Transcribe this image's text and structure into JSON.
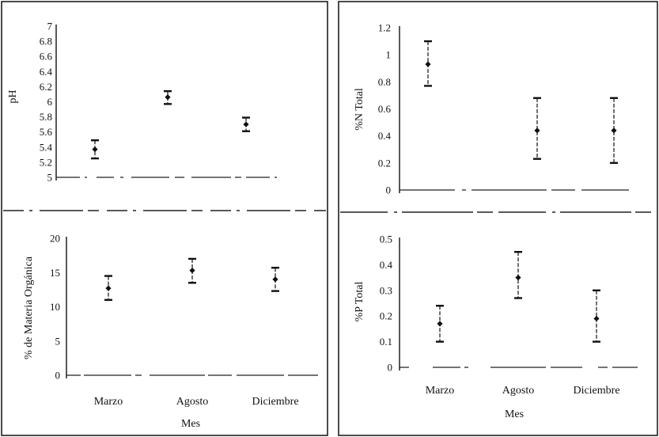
{
  "chart_data": [
    {
      "type": "scatter",
      "error_bars": true,
      "categories": [
        "Marzo",
        "Agosto",
        "Diciembre"
      ],
      "ylabel": "pH",
      "xlabel": "",
      "ylim": [
        5,
        7
      ],
      "yticks": [
        "7",
        "6.8",
        "6.6",
        "6.4",
        "6.2",
        "6",
        "5.8",
        "5.6",
        "5.4",
        "5.2",
        "5"
      ],
      "show_category_labels": false,
      "series": [
        {
          "values": [
            5.37,
            6.06,
            5.7
          ],
          "lower": [
            5.25,
            5.97,
            5.61
          ],
          "upper": [
            5.49,
            6.14,
            5.79
          ]
        }
      ]
    },
    {
      "type": "scatter",
      "error_bars": true,
      "categories": [
        "Marzo",
        "Agosto",
        "Diciembre"
      ],
      "ylabel": "%N Total",
      "xlabel": "",
      "ylim": [
        0,
        1.2
      ],
      "yticks": [
        "1.2",
        "1",
        "0.8",
        "0.6",
        "0.4",
        "0.2",
        "0"
      ],
      "show_category_labels": false,
      "series": [
        {
          "values": [
            0.93,
            0.44,
            0.44
          ],
          "lower": [
            0.77,
            0.23,
            0.2
          ],
          "upper": [
            1.1,
            0.68,
            0.68
          ]
        }
      ]
    },
    {
      "type": "scatter",
      "error_bars": true,
      "categories": [
        "Marzo",
        "Agosto",
        "Diciembre"
      ],
      "ylabel": "% de Materia Orgánica",
      "xlabel": "Mes",
      "ylim": [
        0,
        20
      ],
      "yticks": [
        "20",
        "15",
        "10",
        "5",
        "0"
      ],
      "show_category_labels": true,
      "series": [
        {
          "values": [
            12.7,
            15.3,
            14.0
          ],
          "lower": [
            11.0,
            13.5,
            12.3
          ],
          "upper": [
            14.5,
            17.0,
            15.7
          ]
        }
      ]
    },
    {
      "type": "scatter",
      "error_bars": true,
      "categories": [
        "Marzo",
        "Agosto",
        "Diciembre"
      ],
      "ylabel": "%P Total",
      "xlabel": "Mes",
      "ylim": [
        0,
        0.5
      ],
      "yticks": [
        "0.5",
        "0.4",
        "0.3",
        "0.2",
        "0.1",
        "0"
      ],
      "show_category_labels": true,
      "series": [
        {
          "values": [
            0.17,
            0.35,
            0.19
          ],
          "lower": [
            0.1,
            0.27,
            0.1
          ],
          "upper": [
            0.24,
            0.45,
            0.3
          ]
        }
      ]
    }
  ]
}
